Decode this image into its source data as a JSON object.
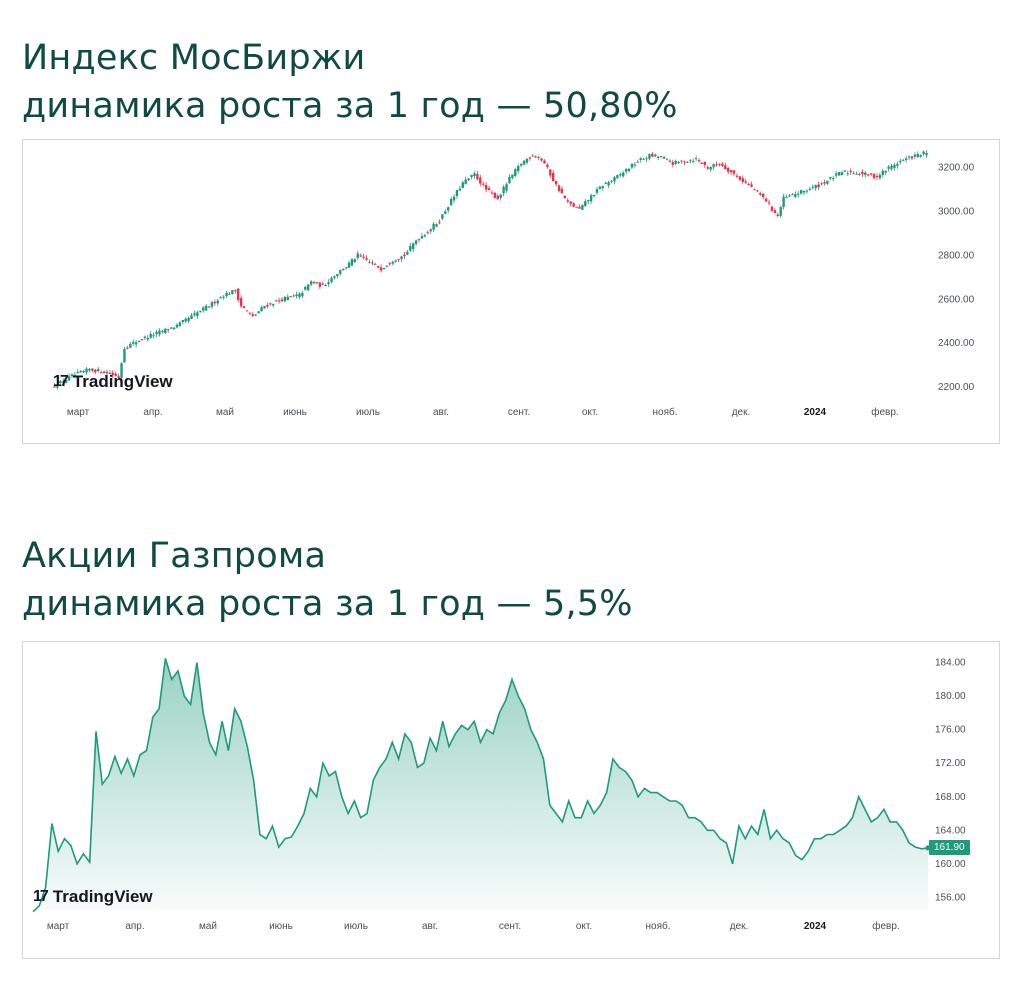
{
  "chart_data": [
    {
      "type": "candlestick",
      "title_line1": "Индекс МосБиржи",
      "title_line2": "динамика роста за 1 год — 50,80%",
      "watermark": "TradingView",
      "x_tick_labels": [
        "март",
        "апр.",
        "май",
        "июнь",
        "июль",
        "авг.",
        "сент.",
        "окт.",
        "нояб.",
        "дек.",
        "2024",
        "февр."
      ],
      "y_tick_labels": [
        "3200.00",
        "3000.00",
        "2800.00",
        "2600.00",
        "2400.00",
        "2200.00"
      ],
      "ylim": [
        2150,
        3290
      ],
      "up_color": "#1e9a7c",
      "down_color": "#e5334b",
      "close_path": [
        [
          0,
          2205
        ],
        [
          6,
          2250
        ],
        [
          12,
          2280
        ],
        [
          18,
          2268
        ],
        [
          22,
          2245
        ],
        [
          24,
          2380
        ],
        [
          30,
          2420
        ],
        [
          36,
          2450
        ],
        [
          42,
          2480
        ],
        [
          48,
          2530
        ],
        [
          54,
          2580
        ],
        [
          58,
          2620
        ],
        [
          62,
          2640
        ],
        [
          64,
          2570
        ],
        [
          68,
          2520
        ],
        [
          72,
          2570
        ],
        [
          78,
          2600
        ],
        [
          84,
          2620
        ],
        [
          88,
          2680
        ],
        [
          92,
          2660
        ],
        [
          96,
          2710
        ],
        [
          100,
          2750
        ],
        [
          104,
          2800
        ],
        [
          108,
          2770
        ],
        [
          112,
          2740
        ],
        [
          116,
          2780
        ],
        [
          120,
          2800
        ],
        [
          124,
          2870
        ],
        [
          128,
          2910
        ],
        [
          132,
          2960
        ],
        [
          136,
          3050
        ],
        [
          140,
          3130
        ],
        [
          144,
          3170
        ],
        [
          148,
          3100
        ],
        [
          152,
          3060
        ],
        [
          156,
          3150
        ],
        [
          160,
          3220
        ],
        [
          164,
          3260
        ],
        [
          166,
          3250
        ],
        [
          168,
          3220
        ],
        [
          172,
          3120
        ],
        [
          176,
          3040
        ],
        [
          180,
          3010
        ],
        [
          184,
          3070
        ],
        [
          188,
          3120
        ],
        [
          192,
          3150
        ],
        [
          196,
          3190
        ],
        [
          200,
          3230
        ],
        [
          204,
          3255
        ],
        [
          208,
          3250
        ],
        [
          212,
          3220
        ],
        [
          216,
          3230
        ],
        [
          220,
          3240
        ],
        [
          224,
          3200
        ],
        [
          228,
          3220
        ],
        [
          232,
          3180
        ],
        [
          236,
          3140
        ],
        [
          240,
          3100
        ],
        [
          244,
          3050
        ],
        [
          246,
          3010
        ],
        [
          248,
          2980
        ],
        [
          250,
          3060
        ],
        [
          254,
          3080
        ],
        [
          258,
          3100
        ],
        [
          262,
          3120
        ],
        [
          266,
          3150
        ],
        [
          270,
          3180
        ],
        [
          274,
          3180
        ],
        [
          278,
          3170
        ],
        [
          282,
          3160
        ],
        [
          286,
          3200
        ],
        [
          290,
          3230
        ],
        [
          294,
          3250
        ],
        [
          298,
          3265
        ]
      ]
    },
    {
      "type": "area",
      "title_line1": "Акции Газпрома",
      "title_line2": "динамика роста за 1 год — 5,5%",
      "watermark": "TradingView",
      "x_tick_labels": [
        "март",
        "апр.",
        "май",
        "июнь",
        "июль",
        "авг.",
        "сент.",
        "окт.",
        "нояб.",
        "дек.",
        "2024",
        "февр."
      ],
      "y_tick_labels": [
        "184.00",
        "180.00",
        "176.00",
        "172.00",
        "168.00",
        "164.00",
        "160.00",
        "156.00"
      ],
      "last_price_label": "161.90",
      "ylim": [
        154.5,
        185.5
      ],
      "line_color": "#1e9a7c",
      "values": [
        154.3,
        155.0,
        157.2,
        164.8,
        161.5,
        163.0,
        162.2,
        160.0,
        161.2,
        160.2,
        175.8,
        169.5,
        170.5,
        172.8,
        170.8,
        172.5,
        170.5,
        173.0,
        173.5,
        177.5,
        178.5,
        184.5,
        182.0,
        183.0,
        180.0,
        179.0,
        184.0,
        178.0,
        174.5,
        173.0,
        177.0,
        173.5,
        178.5,
        177.0,
        174.0,
        170.0,
        163.5,
        163.0,
        164.5,
        162.0,
        163.0,
        163.2,
        164.5,
        166.0,
        169.0,
        168.0,
        172.0,
        170.5,
        171.0,
        168.0,
        166.0,
        167.5,
        165.5,
        166.0,
        170.0,
        171.5,
        172.5,
        174.5,
        172.5,
        175.5,
        174.5,
        171.5,
        172.0,
        175.0,
        173.5,
        177.0,
        174.0,
        175.5,
        176.5,
        176.0,
        177.0,
        174.5,
        176.0,
        175.5,
        178.0,
        179.5,
        182.0,
        180.0,
        178.5,
        176.0,
        174.5,
        172.5,
        167.0,
        166.0,
        165.0,
        167.5,
        165.5,
        165.5,
        167.5,
        166.0,
        167.0,
        168.5,
        172.5,
        171.5,
        171.0,
        170.0,
        168.0,
        169.0,
        168.5,
        168.5,
        168.0,
        167.5,
        167.5,
        167.0,
        165.5,
        165.5,
        165.0,
        164.0,
        164.0,
        163.0,
        162.5,
        160.0,
        164.5,
        163.0,
        164.5,
        163.5,
        166.5,
        163.0,
        164.0,
        163.0,
        162.5,
        161.0,
        160.5,
        161.5,
        163.0,
        163.0,
        163.5,
        163.5,
        164.0,
        164.5,
        165.5,
        168.0,
        166.5,
        165.0,
        165.5,
        166.5,
        165.0,
        165.0,
        164.0,
        162.5,
        162.0,
        161.8,
        161.9
      ]
    }
  ]
}
